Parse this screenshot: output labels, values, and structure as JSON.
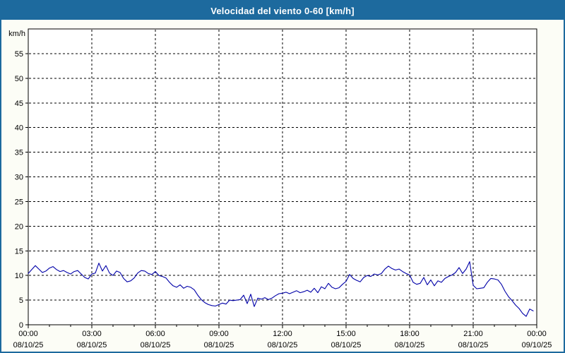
{
  "window": {
    "title": "Velocidad del viento 0-60 [km/h]"
  },
  "colors": {
    "titlebar": "#1d6a9e",
    "window_border": "#1d6a9e",
    "background": "#fcfdf6",
    "plot_background": "#ffffff",
    "grid": "#000000",
    "axis": "#000000",
    "tick_text": "#000000",
    "series_line": "#0000a8"
  },
  "chart_data": {
    "type": "line",
    "title": "Velocidad del viento 0-60 [km/h]",
    "ylabel": "km/h",
    "unit_label": "km/h",
    "ylim": [
      0,
      60
    ],
    "ytick_step": 5,
    "ytick_labels": [
      "0",
      "5",
      "10",
      "15",
      "20",
      "25",
      "30",
      "35",
      "40",
      "45",
      "50",
      "55"
    ],
    "xlim_hours": [
      0,
      24
    ],
    "x_minor_tick_hours": 1,
    "x_major_ticks": [
      {
        "hour": 0,
        "time": "00:00",
        "date": "08/10/25"
      },
      {
        "hour": 3,
        "time": "03:00",
        "date": "08/10/25"
      },
      {
        "hour": 6,
        "time": "06:00",
        "date": "08/10/25"
      },
      {
        "hour": 9,
        "time": "09:00",
        "date": "08/10/25"
      },
      {
        "hour": 12,
        "time": "12:00",
        "date": "08/10/25"
      },
      {
        "hour": 15,
        "time": "15:00",
        "date": "08/10/25"
      },
      {
        "hour": 18,
        "time": "18:00",
        "date": "08/10/25"
      },
      {
        "hour": 21,
        "time": "21:00",
        "date": "08/10/25"
      },
      {
        "hour": 24,
        "time": "00:00",
        "date": "09/10/25"
      }
    ],
    "grid": "dashed",
    "legend": "none",
    "series": [
      {
        "name": "Velocidad del viento",
        "color": "#0000a8",
        "start_hour": 0,
        "interval_minutes": 10,
        "values": [
          10.4,
          11.2,
          12.0,
          11.3,
          10.6,
          10.9,
          11.5,
          11.8,
          11.2,
          10.8,
          11.0,
          10.6,
          10.3,
          10.8,
          11.0,
          10.3,
          9.6,
          9.3,
          10.3,
          10.5,
          12.5,
          10.9,
          12.0,
          10.5,
          10.0,
          10.9,
          10.6,
          9.4,
          8.7,
          8.9,
          9.5,
          10.5,
          11.0,
          10.9,
          10.4,
          10.2,
          10.8,
          10.0,
          9.8,
          9.5,
          8.6,
          7.9,
          7.6,
          8.1,
          7.4,
          7.8,
          7.6,
          7.1,
          6.0,
          5.1,
          4.5,
          4.1,
          3.9,
          3.8,
          4.1,
          4.4,
          4.2,
          5.0,
          4.9,
          5.0,
          5.1,
          6.0,
          4.3,
          6.2,
          3.7,
          5.4,
          5.2,
          5.5,
          5.1,
          5.4,
          5.9,
          6.3,
          6.4,
          6.6,
          6.3,
          6.6,
          6.9,
          6.5,
          6.7,
          7.0,
          6.6,
          7.4,
          6.5,
          7.7,
          7.3,
          8.4,
          7.6,
          7.3,
          7.5,
          8.2,
          8.8,
          10.2,
          9.4,
          9.0,
          8.7,
          9.6,
          10.0,
          9.8,
          10.3,
          10.1,
          10.4,
          11.3,
          11.9,
          11.4,
          11.1,
          11.3,
          10.8,
          10.4,
          10.1,
          8.6,
          8.2,
          8.4,
          9.6,
          8.1,
          9.1,
          7.9,
          8.9,
          8.6,
          9.4,
          9.8,
          10.1,
          10.6,
          11.6,
          10.4,
          11.3,
          12.8,
          8.0,
          7.3,
          7.4,
          7.5,
          8.6,
          9.4,
          9.3,
          9.1,
          8.2,
          6.8,
          5.7,
          4.9,
          4.0,
          3.3,
          2.3,
          1.7,
          3.2,
          2.8
        ]
      }
    ]
  }
}
